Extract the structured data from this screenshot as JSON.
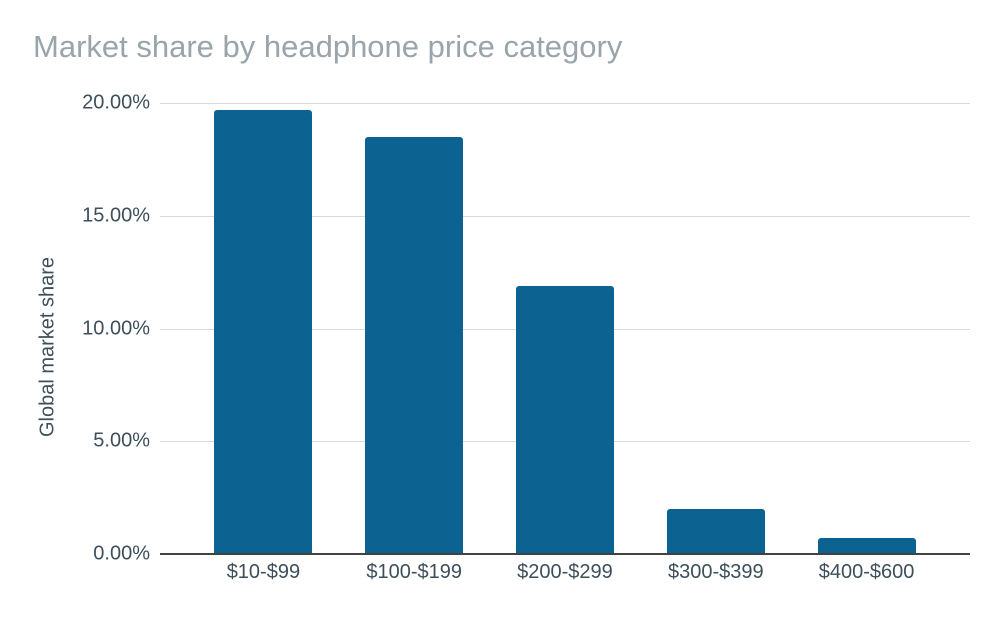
{
  "chart_data": {
    "type": "bar",
    "title": "Market share by headphone price category",
    "xlabel": "",
    "ylabel": "Global market share",
    "categories": [
      "$10-$99",
      "$100-$199",
      "$200-$299",
      "$300-$399",
      "$400-$600"
    ],
    "values": [
      19.7,
      18.5,
      11.9,
      2.0,
      0.7
    ],
    "value_unit": "%",
    "ylim": [
      0,
      20
    ],
    "yticks": [
      {
        "value": 0,
        "label": "0.00%"
      },
      {
        "value": 5,
        "label": "5.00%"
      },
      {
        "value": 10,
        "label": "10.00%"
      },
      {
        "value": 15,
        "label": "15.00%"
      },
      {
        "value": 20,
        "label": "20.00%"
      }
    ],
    "grid": "horizontal",
    "legend_position": "none",
    "bar_color": "#0c6392",
    "colors": {
      "title_text": "#99a4ab",
      "axis_text": "#3d4f5a",
      "gridline": "#d9d9d9",
      "axis_line": "#424242",
      "background": "#ffffff"
    }
  }
}
